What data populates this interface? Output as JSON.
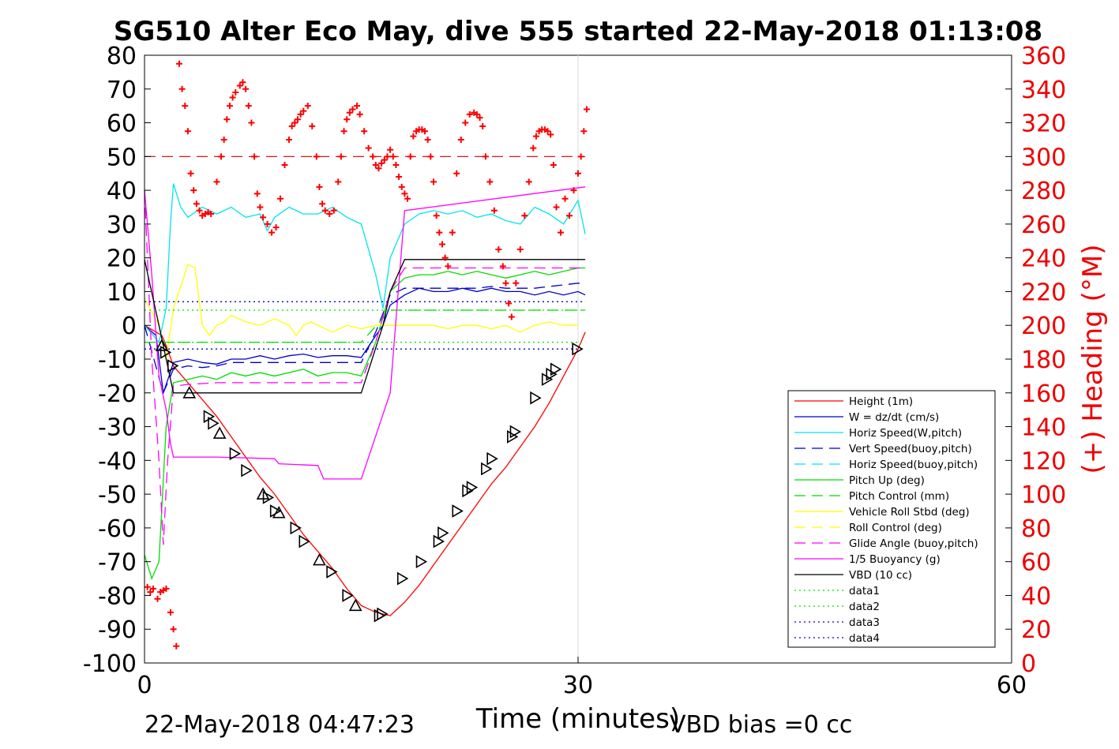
{
  "chart_data": {
    "type": "line",
    "title": "SG510 Alter Eco May, dive 555 started 22-May-2018 01:13:08",
    "xlabel": "Time (minutes)",
    "ylabel_right": "(+) Heading (°M)",
    "footer_left": "22-May-2018 04:47:23",
    "footer_right": "VBD bias =0 cc",
    "xlim": [
      0,
      60
    ],
    "ylim": [
      -100,
      80
    ],
    "y2lim": [
      0,
      360
    ],
    "x_ticks": [
      "0",
      "30",
      "60"
    ],
    "y_ticks": [
      "80",
      "70",
      "60",
      "50",
      "40",
      "30",
      "20",
      "10",
      "0",
      "-10",
      "-20",
      "-30",
      "-40",
      "-50",
      "-60",
      "-70",
      "-80",
      "-90",
      "-100"
    ],
    "y2_ticks": [
      "360",
      "340",
      "320",
      "300",
      "280",
      "260",
      "240",
      "220",
      "200",
      "180",
      "160",
      "140",
      "120",
      "100",
      "80",
      "60",
      "40",
      "20",
      "0"
    ],
    "legend_position": "bottom-right",
    "grid": "x at 30 only",
    "colors": {
      "height": "#ff0000",
      "w": "#0000cd",
      "horiz_speed": "#00e5ee",
      "pitch": "#00dd00",
      "roll": "#ffff00",
      "glide": "#ff00ff",
      "vbd": "#000000",
      "heading": "#ff0000",
      "right_axis": "#ee0000"
    },
    "legend": [
      {
        "name": "Height (1m)",
        "color": "#ff0000",
        "dash": "solid"
      },
      {
        "name": "W = dz/dt (cm/s)",
        "color": "#0000cd",
        "dash": "solid"
      },
      {
        "name": "Horiz Speed(W,pitch)",
        "color": "#00e5ee",
        "dash": "solid"
      },
      {
        "name": "Vert Speed(buoy,pitch)",
        "color": "#0000cd",
        "dash": "dashed"
      },
      {
        "name": "Horiz Speed(buoy,pitch)",
        "color": "#00e5ee",
        "dash": "dashed"
      },
      {
        "name": "Pitch Up (deg)",
        "color": "#00dd00",
        "dash": "solid"
      },
      {
        "name": "Pitch Control (mm)",
        "color": "#00dd00",
        "dash": "dashed"
      },
      {
        "name": "Vehicle Roll Stbd (deg)",
        "color": "#ffff00",
        "dash": "solid"
      },
      {
        "name": "Roll Control (deg)",
        "color": "#ffff00",
        "dash": "dashed"
      },
      {
        "name": "Glide Angle (buoy,pitch)",
        "color": "#ff00ff",
        "dash": "dashed"
      },
      {
        "name": "1/5 Buoyancy (g)",
        "color": "#ff00ff",
        "dash": "solid"
      },
      {
        "name": "VBD (10 cc)",
        "color": "#000000",
        "dash": "solid"
      },
      {
        "name": "data1",
        "color": "#00dd00",
        "dash": "dotted"
      },
      {
        "name": "data2",
        "color": "#00dd00",
        "dash": "dotted"
      },
      {
        "name": "data3",
        "color": "#0000cd",
        "dash": "dotted"
      },
      {
        "name": "data4",
        "color": "#0000cd",
        "dash": "dotted"
      }
    ],
    "series": [
      {
        "name": "Height (1m)",
        "key": "height",
        "x": [
          0.0,
          1.2,
          1.5,
          2.0,
          3.0,
          4.0,
          5.0,
          6.0,
          7.0,
          8.0,
          9.0,
          10.0,
          11.0,
          12.0,
          13.0,
          14.0,
          15.0,
          16.0,
          17.0,
          18.0,
          19.0,
          20.0,
          21.0,
          22.0,
          23.0,
          24.0,
          25.0,
          26.0,
          27.0,
          28.0,
          29.0,
          30.0,
          30.5
        ],
        "y": [
          0.0,
          -3.0,
          -6.0,
          -12.0,
          -17.0,
          -22.0,
          -27.0,
          -33.0,
          -39.0,
          -45.0,
          -50.0,
          -56.0,
          -62.0,
          -67.0,
          -72.0,
          -78.0,
          -83.0,
          -85.0,
          -86.0,
          -82.0,
          -77.0,
          -71.0,
          -65.0,
          -59.0,
          -53.0,
          -47.0,
          -42.0,
          -36.0,
          -30.0,
          -23.0,
          -15.0,
          -7.0,
          -2.0
        ]
      },
      {
        "name": "W = dz/dt (cm/s)",
        "key": "w",
        "x": [
          0.0,
          0.8,
          1.3,
          1.7,
          2.0,
          3.0,
          4.0,
          5.0,
          6.0,
          7.0,
          8.0,
          9.0,
          10.0,
          11.0,
          12.0,
          13.0,
          14.0,
          15.0,
          16.0,
          16.5,
          17.0,
          18.0,
          19.0,
          20.0,
          21.0,
          22.0,
          23.0,
          24.0,
          25.0,
          26.0,
          27.0,
          28.0,
          29.0,
          30.0,
          30.5
        ],
        "y": [
          0.0,
          -3.0,
          -20.0,
          -15.0,
          -11.0,
          -10.0,
          -11.0,
          -11.5,
          -10.0,
          -10.0,
          -9.0,
          -10.0,
          -9.0,
          -8.5,
          -9.5,
          -9.0,
          -9.0,
          -9.5,
          -3.0,
          0.0,
          6.0,
          9.0,
          11.0,
          10.0,
          10.0,
          11.0,
          10.0,
          11.0,
          10.0,
          10.0,
          9.0,
          10.0,
          9.0,
          10.0,
          9.0
        ]
      },
      {
        "name": "Horiz Speed(W,pitch)",
        "key": "horiz_speed",
        "x": [
          0.0,
          1.0,
          1.5,
          1.8,
          2.0,
          2.5,
          3.0,
          4.0,
          5.0,
          6.0,
          7.0,
          8.0,
          8.5,
          9.0,
          10.0,
          11.0,
          12.0,
          13.0,
          14.0,
          15.0,
          16.0,
          16.5,
          17.0,
          18.0,
          19.0,
          20.0,
          21.0,
          22.0,
          23.0,
          24.0,
          25.0,
          26.0,
          27.0,
          28.0,
          29.0,
          30.0,
          30.5
        ],
        "y": [
          0.0,
          -5.0,
          5.0,
          30.0,
          42.0,
          35.0,
          32.0,
          35.0,
          33.0,
          35.0,
          32.0,
          33.0,
          28.0,
          32.0,
          35.0,
          33.0,
          33.0,
          35.0,
          32.0,
          30.0,
          15.0,
          5.0,
          20.0,
          30.0,
          33.0,
          34.0,
          33.0,
          34.0,
          32.0,
          33.0,
          31.0,
          30.0,
          35.0,
          33.0,
          30.0,
          37.0,
          27.0
        ]
      },
      {
        "name": "Vert Speed(buoy,pitch)",
        "key": "vert_speed_buoy",
        "x": [
          0.0,
          1.3,
          2.0,
          3.0,
          4.0,
          5.0,
          6.0,
          7.0,
          8.0,
          9.0,
          10.0,
          11.0,
          12.0,
          13.0,
          14.0,
          15.0,
          16.0,
          17.0,
          18.0,
          19.0,
          20.0,
          21.0,
          22.0,
          23.0,
          24.0,
          25.0,
          26.0,
          27.0,
          28.0,
          29.0,
          30.0,
          30.5
        ],
        "y": [
          0.0,
          -20.0,
          -13.0,
          -12.0,
          -12.5,
          -12.0,
          -11.0,
          -11.0,
          -11.0,
          -11.0,
          -11.0,
          -11.0,
          -11.0,
          -11.0,
          -11.0,
          -11.0,
          -2.0,
          9.0,
          11.0,
          11.0,
          11.0,
          11.0,
          11.0,
          11.0,
          11.5,
          11.0,
          11.0,
          11.0,
          11.5,
          12.0,
          12.5,
          12.5
        ]
      },
      {
        "name": "Pitch Up (deg)",
        "key": "pitch",
        "x": [
          0.0,
          0.5,
          1.0,
          1.5,
          2.0,
          3.0,
          4.0,
          5.0,
          6.0,
          7.0,
          8.0,
          9.0,
          10.0,
          11.0,
          12.0,
          13.0,
          14.0,
          15.0,
          16.0,
          17.0,
          18.0,
          19.0,
          20.0,
          21.0,
          22.0,
          23.0,
          24.0,
          25.0,
          26.0,
          27.0,
          28.0,
          29.0,
          30.0,
          30.5
        ],
        "y": [
          -68.0,
          -75.0,
          -70.0,
          -30.0,
          -17.0,
          -16.0,
          -15.0,
          -16.0,
          -14.0,
          -15.0,
          -14.0,
          -15.0,
          -14.0,
          -13.0,
          -15.0,
          -14.0,
          -14.0,
          -15.0,
          -5.0,
          10.0,
          14.0,
          15.0,
          15.0,
          16.0,
          15.0,
          16.0,
          15.0,
          14.0,
          15.0,
          16.0,
          15.0,
          16.0,
          17.0,
          17.0
        ]
      },
      {
        "name": "Pitch Control (mm)",
        "key": "pitch_control",
        "x": [
          0.0,
          2.0,
          15.0,
          17.0,
          30.5
        ],
        "y": [
          -5.0,
          -5.0,
          -5.0,
          4.5,
          4.5
        ]
      },
      {
        "name": "Vehicle Roll Stbd (deg)",
        "key": "roll",
        "x": [
          0.0,
          1.0,
          1.5,
          2.0,
          3.0,
          3.5,
          4.0,
          4.5,
          5.0,
          5.5,
          6.0,
          7.0,
          8.0,
          9.0,
          10.0,
          10.5,
          11.0,
          11.5,
          12.0,
          13.0,
          14.0,
          15.0,
          16.0,
          17.0,
          18.0,
          19.0,
          20.0,
          21.0,
          22.0,
          23.0,
          24.0,
          25.0,
          26.0,
          27.0,
          28.0,
          29.0,
          30.0
        ],
        "y": [
          8.0,
          0.0,
          -10.0,
          5.0,
          18.0,
          17.0,
          0.0,
          -3.0,
          0.0,
          1.0,
          3.0,
          1.0,
          0.0,
          2.0,
          0.0,
          -3.0,
          0.0,
          1.0,
          0.0,
          -2.0,
          0.0,
          -1.0,
          0.0,
          0.0,
          0.0,
          0.0,
          0.0,
          -1.0,
          0.0,
          0.0,
          -1.0,
          0.0,
          -2.0,
          0.0,
          1.0,
          0.0,
          0.0
        ]
      },
      {
        "name": "Glide Angle (buoy,pitch)",
        "key": "glide_angle",
        "x": [
          0.0,
          0.5,
          1.0,
          1.3,
          1.6,
          2.0,
          3.0,
          5.0,
          7.0,
          9.0,
          11.0,
          13.0,
          15.0,
          16.0,
          17.0,
          18.0,
          20.0,
          22.0,
          24.0,
          26.0,
          28.0,
          30.0,
          30.5
        ],
        "y": [
          40.0,
          -10.0,
          -40.0,
          -65.0,
          -40.0,
          -18.0,
          -17.5,
          -17.0,
          -17.0,
          -17.0,
          -17.0,
          -17.0,
          -17.0,
          -5.0,
          10.0,
          17.0,
          17.0,
          17.0,
          17.0,
          17.0,
          17.0,
          17.0,
          17.0
        ]
      },
      {
        "name": "1/5 Buoyancy (g)",
        "key": "buoyancy",
        "x": [
          0.0,
          0.5,
          1.0,
          1.5,
          1.8,
          2.0,
          5.0,
          9.0,
          9.3,
          12.0,
          12.4,
          15.0,
          17.0,
          18.0,
          30.5
        ],
        "y": [
          40.0,
          15.0,
          -15.0,
          -25.0,
          -35.0,
          -39.0,
          -39.0,
          -39.5,
          -41.0,
          -41.5,
          -45.5,
          -45.5,
          -20.0,
          34.0,
          41.0
        ]
      },
      {
        "name": "VBD (10 cc)",
        "key": "vbd",
        "x": [
          0.0,
          1.0,
          1.5,
          2.0,
          15.0,
          16.5,
          17.0,
          18.0,
          30.5
        ],
        "y": [
          19.5,
          0.0,
          -10.0,
          -20.0,
          -20.0,
          0.0,
          10.0,
          19.5,
          19.5
        ]
      },
      {
        "name": "data1",
        "key": "data1",
        "x": [
          0.0,
          30.5
        ],
        "y": [
          -5.0,
          -5.0
        ]
      },
      {
        "name": "data2",
        "key": "data2",
        "x": [
          0.0,
          30.5
        ],
        "y": [
          4.5,
          4.5
        ]
      },
      {
        "name": "data3",
        "key": "data3",
        "x": [
          0.0,
          30.5
        ],
        "y": [
          7.0,
          7.0
        ]
      },
      {
        "name": "data4",
        "key": "data4",
        "x": [
          0.0,
          30.5
        ],
        "y": [
          -7.0,
          -7.0
        ]
      }
    ],
    "heading_reference": {
      "y2": 300
    },
    "heading_points": {
      "name": "Heading",
      "x": [
        0.2,
        0.4,
        0.6,
        0.9,
        1.1,
        1.3,
        1.5,
        1.8,
        2.0,
        2.2,
        2.4,
        2.6,
        2.8,
        3.0,
        3.2,
        3.4,
        3.6,
        3.8,
        4.0,
        4.2,
        4.4,
        4.6,
        5.0,
        5.3,
        5.5,
        5.7,
        5.9,
        6.1,
        6.3,
        6.6,
        6.8,
        7.0,
        7.2,
        7.4,
        7.6,
        7.8,
        8.0,
        8.2,
        8.5,
        8.8,
        9.1,
        9.4,
        9.7,
        10.0,
        10.2,
        10.4,
        10.6,
        10.8,
        11.0,
        11.3,
        11.6,
        11.9,
        12.1,
        12.3,
        12.5,
        12.8,
        13.1,
        13.4,
        13.6,
        13.8,
        14.0,
        14.2,
        14.4,
        14.7,
        14.9,
        15.2,
        15.5,
        15.8,
        16.0,
        16.2,
        16.4,
        16.6,
        16.8,
        17.0,
        17.2,
        17.4,
        17.6,
        17.8,
        18.0,
        18.2,
        18.4,
        18.6,
        18.8,
        19.0,
        19.2,
        19.4,
        19.6,
        19.8,
        20.0,
        20.2,
        20.4,
        20.6,
        20.8,
        21.0,
        21.3,
        21.6,
        21.9,
        22.2,
        22.5,
        22.8,
        23.0,
        23.2,
        23.4,
        23.6,
        23.9,
        24.2,
        24.5,
        24.8,
        25.0,
        25.2,
        25.4,
        25.7,
        26.0,
        26.3,
        26.6,
        26.9,
        27.1,
        27.3,
        27.5,
        27.7,
        27.9,
        28.1,
        28.3,
        28.5,
        28.8,
        29.1,
        29.4,
        29.7,
        30.0,
        30.2,
        30.4,
        30.6
      ],
      "y2": [
        45,
        42,
        44,
        38,
        42,
        43,
        44,
        30,
        20,
        10,
        355,
        340,
        330,
        315,
        290,
        280,
        272,
        268,
        265,
        266,
        267,
        266,
        285,
        300,
        310,
        322,
        330,
        335,
        338,
        342,
        344,
        340,
        330,
        320,
        300,
        278,
        270,
        264,
        260,
        255,
        258,
        275,
        295,
        310,
        318,
        320,
        322,
        325,
        327,
        330,
        318,
        300,
        282,
        272,
        268,
        266,
        268,
        285,
        300,
        315,
        322,
        326,
        328,
        330,
        325,
        315,
        305,
        300,
        295,
        293,
        296,
        298,
        300,
        304,
        300,
        295,
        288,
        282,
        278,
        275,
        300,
        312,
        315,
        316,
        316,
        315,
        310,
        300,
        285,
        265,
        255,
        248,
        240,
        235,
        255,
        290,
        310,
        320,
        325,
        326,
        325,
        323,
        318,
        300,
        285,
        268,
        245,
        235,
        225,
        213,
        205,
        225,
        245,
        265,
        285,
        305,
        312,
        315,
        316,
        316,
        315,
        313,
        295,
        270,
        255,
        275,
        265,
        280,
        290,
        300,
        315,
        328
      ]
    },
    "triangle_markers": {
      "name": "Height samples",
      "x": [
        1.2,
        1.4,
        1.9,
        3.1,
        4.4,
        4.7,
        5.2,
        6.2,
        7.0,
        8.2,
        8.5,
        9.0,
        9.3,
        10.4,
        11.0,
        12.1,
        12.9,
        14.0,
        14.6,
        16.2,
        16.4,
        17.8,
        19.1,
        20.3,
        20.6,
        21.6,
        22.3,
        22.6,
        23.6,
        24.0,
        25.4,
        25.6,
        27.0,
        27.8,
        28.1,
        28.4,
        29.9
      ],
      "y": [
        -6.0,
        -8.0,
        -12.0,
        -20.0,
        -27.0,
        -29.0,
        -32.0,
        -38.0,
        -43.0,
        -50.0,
        -51.0,
        -55.0,
        -55.5,
        -60.0,
        -64.0,
        -69.5,
        -73.0,
        -80.0,
        -83.0,
        -86.0,
        -85.5,
        -75.0,
        -70.0,
        -64.0,
        -61.5,
        -55.0,
        -49.0,
        -48.0,
        -42.5,
        -39.5,
        -33.0,
        -31.5,
        -21.5,
        -16.0,
        -14.5,
        -13.0,
        -7.0
      ]
    }
  }
}
